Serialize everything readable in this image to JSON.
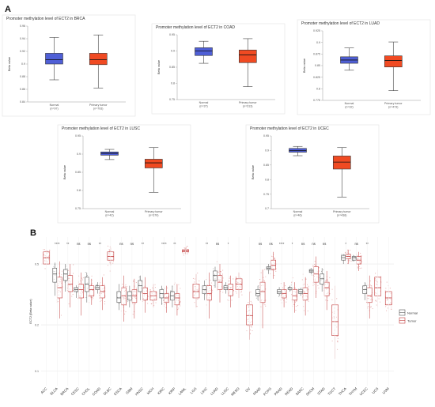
{
  "panels": {
    "a_label": "A",
    "b_label": "B"
  },
  "colors": {
    "normal_box": "#4f5fd6",
    "tumor_box": "#f04a22",
    "b_normal": "#555555",
    "b_tumor": "#c23b3b",
    "b_points": "#d46a6a"
  },
  "chart_data": [
    {
      "type": "box",
      "title": "Promoter methylation level of ECT2 in BRCA",
      "ylabel": "Beta value",
      "ylim": [
        0.84,
        0.96
      ],
      "yticks": [
        0.84,
        0.86,
        0.88,
        0.9,
        0.92,
        0.94,
        0.96
      ],
      "categories": [
        "Normal",
        "Primary tumor"
      ],
      "counts": [
        "(n=97)",
        "(n=793)"
      ],
      "boxes": [
        {
          "whisker_low": 0.875,
          "q1": 0.9,
          "median": 0.907,
          "q3": 0.917,
          "whisker_high": 0.942
        },
        {
          "whisker_low": 0.862,
          "q1": 0.899,
          "median": 0.907,
          "q3": 0.917,
          "whisker_high": 0.946
        }
      ]
    },
    {
      "type": "box",
      "title": "Promoter methylation level of ECT2 in COAD",
      "ylabel": "Beta value",
      "ylim": [
        0.75,
        0.95
      ],
      "yticks": [
        0.75,
        0.8,
        0.85,
        0.9,
        0.95
      ],
      "categories": [
        "Normal",
        "Primary tumor"
      ],
      "counts": [
        "(n=37)",
        "(n=313)"
      ],
      "boxes": [
        {
          "whisker_low": 0.862,
          "q1": 0.886,
          "median": 0.9,
          "q3": 0.91,
          "whisker_high": 0.93
        },
        {
          "whisker_low": 0.79,
          "q1": 0.864,
          "median": 0.888,
          "q3": 0.903,
          "whisker_high": 0.938
        }
      ]
    },
    {
      "type": "box",
      "title": "Promoter methylation level of ECT2 in LUAD",
      "ylabel": "Beta value",
      "ylim": [
        0.775,
        0.925
      ],
      "yticks": [
        0.775,
        0.8,
        0.825,
        0.85,
        0.875,
        0.9,
        0.925
      ],
      "categories": [
        "Normal",
        "Primary tumor"
      ],
      "counts": [
        "(n=32)",
        "(n=473)"
      ],
      "boxes": [
        {
          "whisker_low": 0.84,
          "q1": 0.855,
          "median": 0.862,
          "q3": 0.869,
          "whisker_high": 0.888
        },
        {
          "whisker_low": 0.796,
          "q1": 0.847,
          "median": 0.861,
          "q3": 0.871,
          "whisker_high": 0.901
        }
      ]
    },
    {
      "type": "box",
      "title": "Promoter methylation level of ECT2 in LUSC",
      "ylabel": "Beta value",
      "ylim": [
        0.75,
        0.95
      ],
      "yticks": [
        0.75,
        0.8,
        0.85,
        0.9,
        0.95
      ],
      "categories": [
        "Normal",
        "Primary tumor"
      ],
      "counts": [
        "(n=42)",
        "(n=370)"
      ],
      "boxes": [
        {
          "whisker_low": 0.885,
          "q1": 0.897,
          "median": 0.902,
          "q3": 0.906,
          "whisker_high": 0.913
        },
        {
          "whisker_low": 0.795,
          "q1": 0.862,
          "median": 0.876,
          "q3": 0.886,
          "whisker_high": 0.918
        }
      ]
    },
    {
      "type": "box",
      "title": "Promoter methylation level of ECT2 in UCEC",
      "ylabel": "Beta value",
      "ylim": [
        0.7,
        0.95
      ],
      "yticks": [
        0.7,
        0.75,
        0.8,
        0.85,
        0.9,
        0.95
      ],
      "categories": [
        "Normal",
        "Primary tumor"
      ],
      "counts": [
        "(n=46)",
        "(n=438)"
      ],
      "boxes": [
        {
          "whisker_low": 0.882,
          "q1": 0.894,
          "median": 0.9,
          "q3": 0.907,
          "whisker_high": 0.914
        },
        {
          "whisker_low": 0.74,
          "q1": 0.836,
          "median": 0.86,
          "q3": 0.881,
          "whisker_high": 0.91
        }
      ]
    },
    {
      "type": "box",
      "ylabel": "ECT2 (Beta value)",
      "yscale": "log",
      "ylim": [
        0.08,
        0.75
      ],
      "yticks": [
        0.1,
        0.2,
        0.5
      ],
      "legend": {
        "position": "right",
        "entries": [
          "Normal",
          "Tumor"
        ]
      },
      "categories": [
        "ACC",
        "BLCA",
        "BRCA",
        "CESC",
        "CHOL",
        "COAD",
        "DLBC",
        "ESCA",
        "GBM",
        "HNSC",
        "KICH",
        "KIRC",
        "KIRP",
        "LAML",
        "LGG",
        "LIHC",
        "LUAD",
        "LUSC",
        "MESO",
        "OV",
        "PAAD",
        "PCPG",
        "PRAD",
        "READ",
        "SARC",
        "SKCM",
        "STAD",
        "TGCT",
        "THCA",
        "THYM",
        "UCEC",
        "UCS",
        "UVM"
      ],
      "significance": [
        "",
        "****",
        "**",
        "ns",
        "ns",
        "**",
        "",
        "ns",
        "ns",
        "**",
        "",
        "****",
        "**",
        "",
        "",
        "**",
        "ns",
        "*",
        "",
        "",
        "ns",
        "ns",
        "****",
        "*",
        "ns",
        "ns",
        "ns",
        "",
        "*",
        "ns",
        "**",
        "",
        ""
      ],
      "normal": [
        null,
        [
          0.31,
          0.38,
          0.43,
          0.47,
          0.51
        ],
        [
          0.33,
          0.39,
          0.43,
          0.46,
          0.5
        ],
        [
          0.3,
          0.33,
          0.34,
          0.35,
          0.36
        ],
        [
          0.28,
          0.33,
          0.37,
          0.41,
          0.44
        ],
        [
          0.32,
          0.34,
          0.35,
          0.36,
          0.38
        ],
        null,
        [
          0.25,
          0.28,
          0.3,
          0.33,
          0.37
        ],
        [
          0.26,
          0.29,
          0.31,
          0.33,
          0.36
        ],
        [
          0.29,
          0.33,
          0.36,
          0.39,
          0.42
        ],
        null,
        [
          0.27,
          0.3,
          0.32,
          0.34,
          0.36
        ],
        [
          0.26,
          0.29,
          0.31,
          0.33,
          0.36
        ],
        null,
        null,
        [
          0.29,
          0.32,
          0.34,
          0.36,
          0.39
        ],
        [
          0.35,
          0.39,
          0.42,
          0.45,
          0.48
        ],
        [
          0.32,
          0.34,
          0.35,
          0.36,
          0.38
        ],
        null,
        null,
        [
          0.29,
          0.31,
          0.32,
          0.34,
          0.36
        ],
        [
          0.43,
          0.46,
          0.47,
          0.48,
          0.5
        ],
        [
          0.31,
          0.32,
          0.33,
          0.34,
          0.35
        ],
        [
          0.33,
          0.34,
          0.35,
          0.35,
          0.36
        ],
        [
          0.31,
          0.32,
          0.33,
          0.34,
          0.35
        ],
        [
          0.43,
          0.44,
          0.45,
          0.46,
          0.47
        ],
        [
          0.33,
          0.37,
          0.4,
          0.43,
          0.47
        ],
        null,
        [
          0.5,
          0.53,
          0.55,
          0.57,
          0.58
        ],
        [
          0.52,
          0.53,
          0.55,
          0.56,
          0.57
        ],
        [
          0.29,
          0.32,
          0.34,
          0.36,
          0.38
        ],
        null,
        null
      ],
      "tumor": [
        [
          0.45,
          0.5,
          0.55,
          0.6,
          0.66
        ],
        [
          0.22,
          0.3,
          0.35,
          0.41,
          0.52
        ],
        [
          0.26,
          0.33,
          0.37,
          0.42,
          0.5
        ],
        [
          0.23,
          0.3,
          0.34,
          0.37,
          0.44
        ],
        [
          0.27,
          0.31,
          0.34,
          0.36,
          0.4
        ],
        [
          0.25,
          0.3,
          0.33,
          0.36,
          0.41
        ],
        [
          0.49,
          0.53,
          0.56,
          0.6,
          0.64
        ],
        [
          0.21,
          0.27,
          0.31,
          0.35,
          0.42
        ],
        [
          0.22,
          0.28,
          0.31,
          0.34,
          0.4
        ],
        [
          0.24,
          0.29,
          0.32,
          0.35,
          0.41
        ],
        [
          0.26,
          0.29,
          0.31,
          0.33,
          0.37
        ],
        [
          0.24,
          0.28,
          0.3,
          0.32,
          0.36
        ],
        [
          0.23,
          0.27,
          0.3,
          0.32,
          0.37
        ],
        [
          0.58,
          0.6,
          0.61,
          0.62,
          0.64
        ],
        [
          0.26,
          0.3,
          0.33,
          0.37,
          0.43
        ],
        [
          0.22,
          0.29,
          0.32,
          0.36,
          0.44
        ],
        [
          0.28,
          0.34,
          0.38,
          0.42,
          0.5
        ],
        [
          0.26,
          0.31,
          0.34,
          0.37,
          0.42
        ],
        [
          0.3,
          0.34,
          0.37,
          0.4,
          0.44
        ],
        [
          0.16,
          0.2,
          0.23,
          0.27,
          0.33
        ],
        [
          0.19,
          0.28,
          0.33,
          0.38,
          0.46
        ],
        [
          0.4,
          0.46,
          0.49,
          0.53,
          0.6
        ],
        [
          0.26,
          0.3,
          0.32,
          0.34,
          0.38
        ],
        [
          0.24,
          0.29,
          0.31,
          0.34,
          0.38
        ],
        [
          0.23,
          0.29,
          0.32,
          0.35,
          0.41
        ],
        [
          0.3,
          0.38,
          0.43,
          0.48,
          0.56
        ],
        [
          0.25,
          0.31,
          0.35,
          0.38,
          0.45
        ],
        [
          0.12,
          0.17,
          0.21,
          0.27,
          0.36
        ],
        [
          0.5,
          0.54,
          0.56,
          0.58,
          0.62
        ],
        [
          0.45,
          0.5,
          0.53,
          0.56,
          0.6
        ],
        [
          0.22,
          0.28,
          0.31,
          0.35,
          0.42
        ],
        [
          0.26,
          0.31,
          0.35,
          0.41,
          0.46
        ],
        [
          0.22,
          0.27,
          0.3,
          0.33,
          0.36
        ]
      ]
    }
  ]
}
